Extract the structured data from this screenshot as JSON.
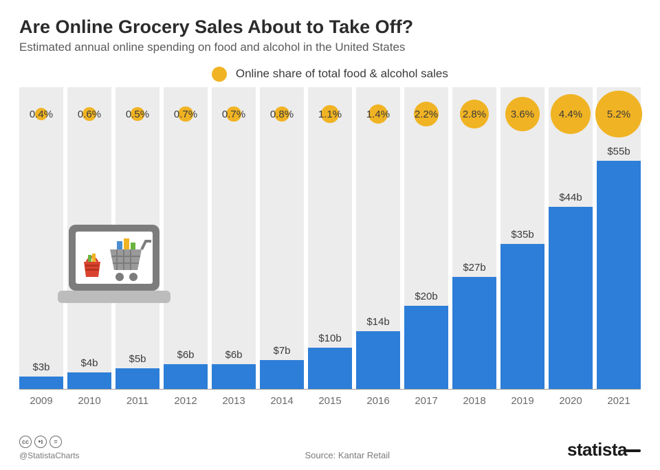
{
  "title": "Are Online Grocery Sales About to Take Off?",
  "subtitle": "Estimated annual online spending on food and alcohol in the United States",
  "legend": {
    "label": "Online share of total food & alcohol sales",
    "dot_color": "#f0b323"
  },
  "chart": {
    "type": "bar",
    "bar_color": "#2d7ed8",
    "column_bg": "#ececec",
    "bubble_color": "#f0b323",
    "axis_color": "#9a9a9a",
    "label_color": "#3a3a3a",
    "year_color": "#6a6a6a",
    "max_value": 60,
    "bubble_min_diameter": 14,
    "bubble_diameter_scale": 10.2,
    "data": [
      {
        "year": "2009",
        "value": 3,
        "value_label": "$3b",
        "share": 0.4,
        "share_label": "0.4%"
      },
      {
        "year": "2010",
        "value": 4,
        "value_label": "$4b",
        "share": 0.6,
        "share_label": "0.6%"
      },
      {
        "year": "2011",
        "value": 5,
        "value_label": "$5b",
        "share": 0.5,
        "share_label": "0.5%"
      },
      {
        "year": "2012",
        "value": 6,
        "value_label": "$6b",
        "share": 0.7,
        "share_label": "0.7%"
      },
      {
        "year": "2013",
        "value": 6,
        "value_label": "$6b",
        "share": 0.7,
        "share_label": "0.7%"
      },
      {
        "year": "2014",
        "value": 7,
        "value_label": "$7b",
        "share": 0.8,
        "share_label": "0.8%"
      },
      {
        "year": "2015",
        "value": 10,
        "value_label": "$10b",
        "share": 1.1,
        "share_label": "1.1%"
      },
      {
        "year": "2016",
        "value": 14,
        "value_label": "$14b",
        "share": 1.4,
        "share_label": "1.4%"
      },
      {
        "year": "2017",
        "value": 20,
        "value_label": "$20b",
        "share": 2.2,
        "share_label": "2.2%"
      },
      {
        "year": "2018",
        "value": 27,
        "value_label": "$27b",
        "share": 2.8,
        "share_label": "2.8%"
      },
      {
        "year": "2019",
        "value": 35,
        "value_label": "$35b",
        "share": 3.6,
        "share_label": "3.6%"
      },
      {
        "year": "2020",
        "value": 44,
        "value_label": "$44b",
        "share": 4.4,
        "share_label": "4.4%"
      },
      {
        "year": "2021",
        "value": 55,
        "value_label": "$55b",
        "share": 5.2,
        "share_label": "5.2%"
      }
    ]
  },
  "footer": {
    "handle": "@StatistaCharts",
    "source_prefix": "Source: ",
    "source": "Kantar Retail",
    "logo": "statista"
  }
}
